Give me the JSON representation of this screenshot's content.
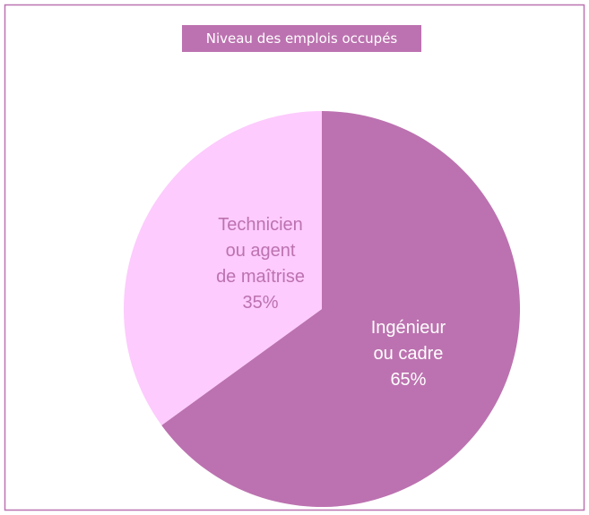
{
  "chart_data": {
    "type": "pie",
    "title": "Niveau des emplois occupés",
    "categories": [
      "Ingénieur ou cadre",
      "Technicien ou agent de maîtrise"
    ],
    "values": [
      65,
      35
    ],
    "value_labels": [
      "65%",
      "35%"
    ],
    "colors": [
      "#bc72b0",
      "#fdcbfd"
    ],
    "label_colors": [
      "#ffffff",
      "#bc72b0"
    ]
  }
}
